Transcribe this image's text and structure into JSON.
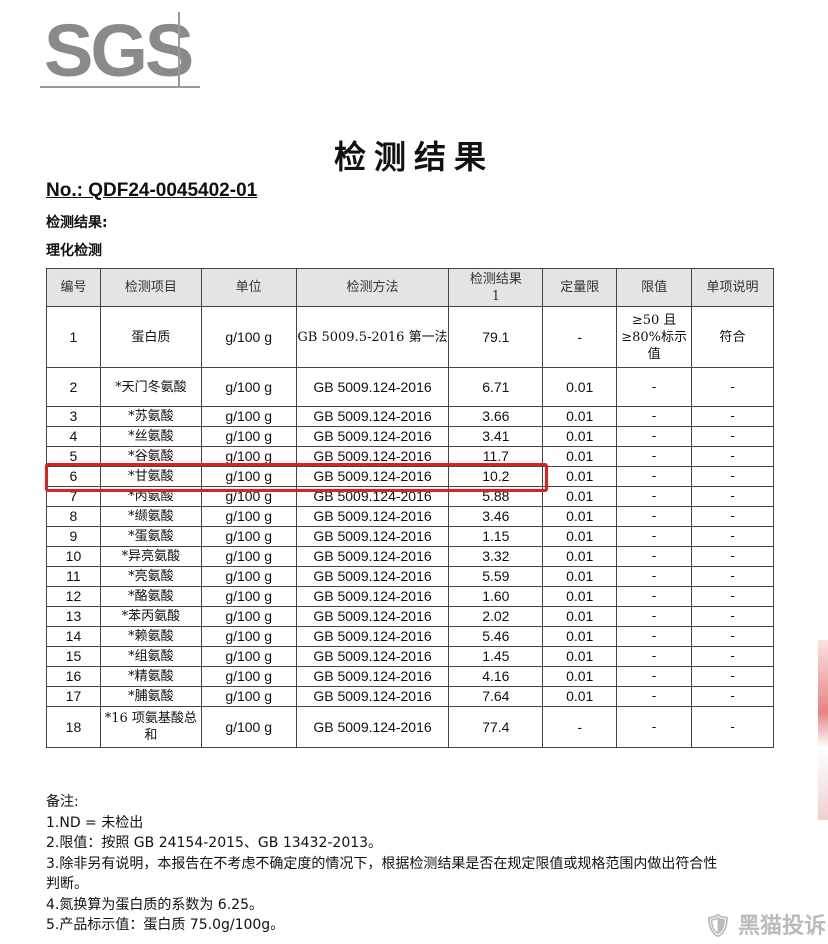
{
  "logo": "SGS",
  "title": "检测结果",
  "report_no": "No.: QDF24-0045402-01",
  "section1": "检测结果:",
  "section2": "理化检测",
  "table": {
    "headers": [
      "编号",
      "检测项目",
      "单位",
      "检测方法",
      "检测结果\n1",
      "定量限",
      "限值",
      "单项说明"
    ],
    "rows": [
      [
        "1",
        "蛋白质",
        "g/100 g",
        "GB 5009.5-2016 第一法",
        "79.1",
        "-",
        "≥50 且≥80%标示值",
        "符合"
      ],
      [
        "2",
        "*天门冬氨酸",
        "g/100 g",
        "GB 5009.124-2016",
        "6.71",
        "0.01",
        "-",
        "-"
      ],
      [
        "3",
        "*苏氨酸",
        "g/100 g",
        "GB 5009.124-2016",
        "3.66",
        "0.01",
        "-",
        "-"
      ],
      [
        "4",
        "*丝氨酸",
        "g/100 g",
        "GB 5009.124-2016",
        "3.41",
        "0.01",
        "-",
        "-"
      ],
      [
        "5",
        "*谷氨酸",
        "g/100 g",
        "GB 5009.124-2016",
        "11.7",
        "0.01",
        "-",
        "-"
      ],
      [
        "6",
        "*甘氨酸",
        "g/100 g",
        "GB 5009.124-2016",
        "10.2",
        "0.01",
        "-",
        "-"
      ],
      [
        "7",
        "*丙氨酸",
        "g/100 g",
        "GB 5009.124-2016",
        "5.88",
        "0.01",
        "-",
        "-"
      ],
      [
        "8",
        "*缬氨酸",
        "g/100 g",
        "GB 5009.124-2016",
        "3.46",
        "0.01",
        "-",
        "-"
      ],
      [
        "9",
        "*蛋氨酸",
        "g/100 g",
        "GB 5009.124-2016",
        "1.15",
        "0.01",
        "-",
        "-"
      ],
      [
        "10",
        "*异亮氨酸",
        "g/100 g",
        "GB 5009.124-2016",
        "3.32",
        "0.01",
        "-",
        "-"
      ],
      [
        "11",
        "*亮氨酸",
        "g/100 g",
        "GB 5009.124-2016",
        "5.59",
        "0.01",
        "-",
        "-"
      ],
      [
        "12",
        "*酪氨酸",
        "g/100 g",
        "GB 5009.124-2016",
        "1.60",
        "0.01",
        "-",
        "-"
      ],
      [
        "13",
        "*苯丙氨酸",
        "g/100 g",
        "GB 5009.124-2016",
        "2.02",
        "0.01",
        "-",
        "-"
      ],
      [
        "14",
        "*赖氨酸",
        "g/100 g",
        "GB 5009.124-2016",
        "5.46",
        "0.01",
        "-",
        "-"
      ],
      [
        "15",
        "*组氨酸",
        "g/100 g",
        "GB 5009.124-2016",
        "1.45",
        "0.01",
        "-",
        "-"
      ],
      [
        "16",
        "*精氨酸",
        "g/100 g",
        "GB 5009.124-2016",
        "4.16",
        "0.01",
        "-",
        "-"
      ],
      [
        "17",
        "*脯氨酸",
        "g/100 g",
        "GB 5009.124-2016",
        "7.64",
        "0.01",
        "-",
        "-"
      ],
      [
        "18",
        "*16 项氨基酸总和",
        "g/100 g",
        "GB 5009.124-2016",
        "77.4",
        "-",
        "-",
        "-"
      ]
    ],
    "highlighted_row": "6",
    "highlight_color": "#e02020"
  },
  "notes": [
    "备注:",
    "1.ND = 未检出",
    "2.限值：按照 GB 24154-2015、GB 13432-2013。",
    "3.除非另有说明，本报告在不考虑不确定度的情况下，根据检测结果是否在规定限值或规格范围内做出符合性",
    "判断。",
    "4.氮换算为蛋白质的系数为 6.25。",
    "5.产品标示值：蛋白质 75.0g/100g。"
  ],
  "watermark": "黑猫投诉"
}
